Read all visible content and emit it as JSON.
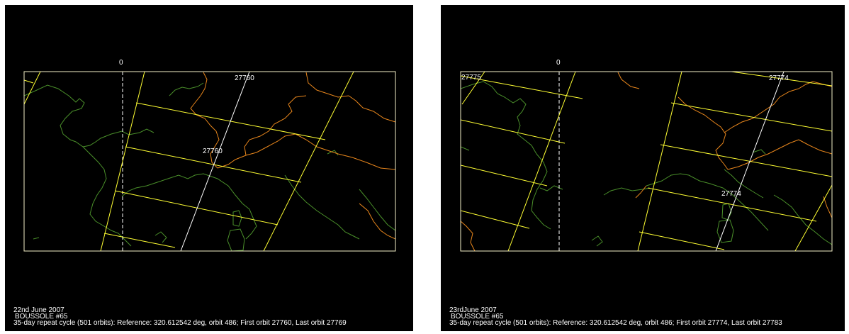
{
  "colors": {
    "background": "#000000",
    "frame": "#f5f0c8",
    "track": "#ffff33",
    "orbit": "#ffffff",
    "coast": "#4a8f2a",
    "border": "#e8861c",
    "meridian": "#ffffff"
  },
  "panels": [
    {
      "id": "left",
      "meridian_label": "0",
      "orbit_top_label": "27760",
      "orbit_mid_label": "27760",
      "caption": {
        "date": "22nd June 2007",
        "site": "BOUSSOLE #65",
        "details": "35-day repeat cycle (501 orbits): Reference: 320.612542 deg, orbit 486; First orbit 27760, Last orbit 27769"
      }
    },
    {
      "id": "right",
      "meridian_label": "0",
      "orbit_corner_label": "27775",
      "orbit_top_label": "27774",
      "orbit_mid_label": "27774",
      "caption": {
        "date": "23rdJune 2007",
        "site": "BOUSSOLE #65",
        "details": "35-day repeat cycle (501 orbits): Reference: 320.612542 deg, orbit 486; First orbit 27774, Last orbit 27783"
      }
    }
  ]
}
